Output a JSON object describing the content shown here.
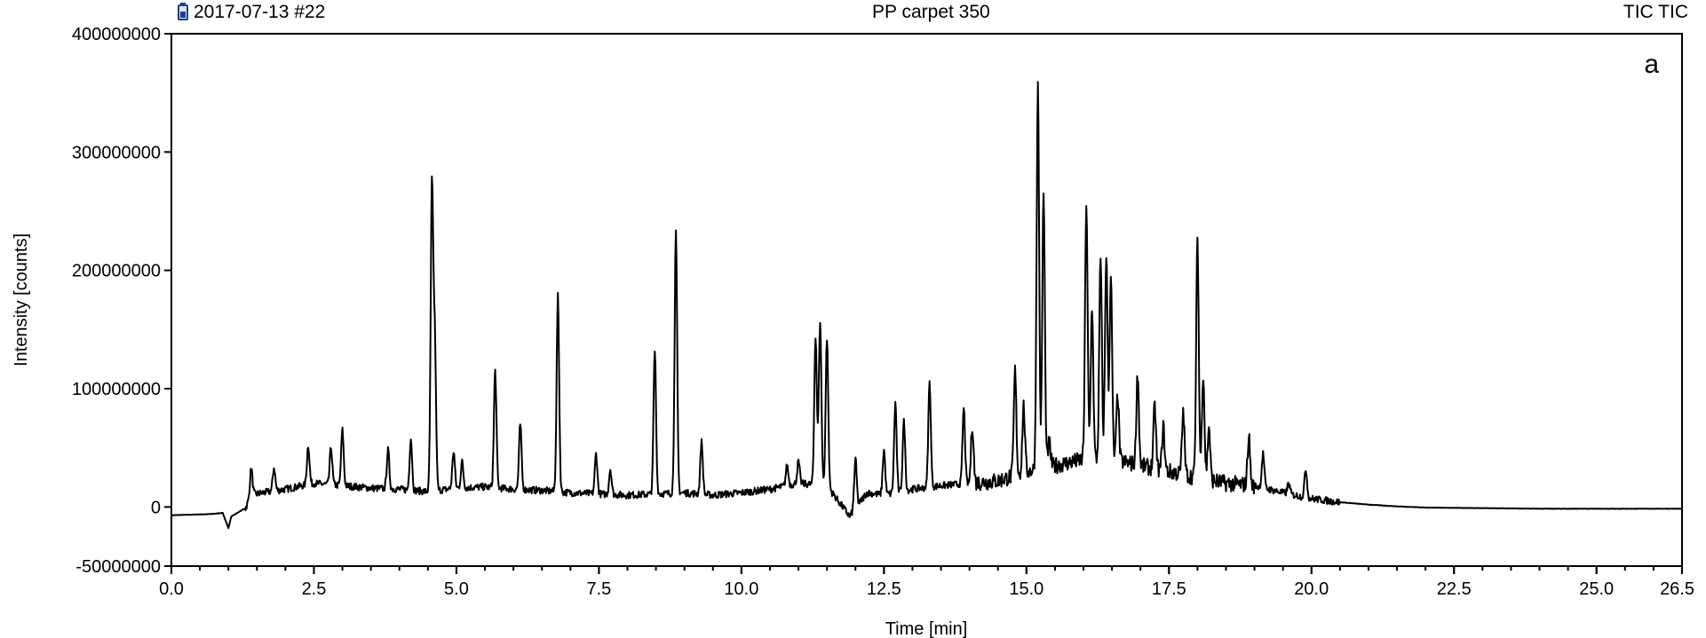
{
  "header": {
    "left": "2017-07-13 #22",
    "center": "PP carpet 350",
    "right": "TIC TIC"
  },
  "panel_label": "a",
  "chart_data": {
    "type": "line",
    "xlabel": "Time [min]",
    "ylabel": "Intensity [counts]",
    "xlim": [
      0,
      26.5
    ],
    "ylim": [
      -50000000,
      400000000
    ],
    "x_ticks": [
      "0.0",
      "2.5",
      "5.0",
      "7.5",
      "10.0",
      "12.5",
      "15.0",
      "17.5",
      "20.0",
      "22.5",
      "25.0",
      "26.5"
    ],
    "y_ticks": [
      "400000000",
      "300000000",
      "200000000",
      "100000000",
      "0",
      "-50000000"
    ],
    "grid": false,
    "line_color": "#000000",
    "baseline": [
      [
        0.0,
        -7000000
      ],
      [
        0.7,
        -6000000
      ],
      [
        0.9,
        -5000000
      ],
      [
        1.0,
        -18000000
      ],
      [
        1.05,
        -8000000
      ],
      [
        1.3,
        -1000000
      ],
      [
        1.4,
        10000000
      ],
      [
        1.6,
        12000000
      ],
      [
        2.0,
        15000000
      ],
      [
        2.5,
        20000000
      ],
      [
        3.0,
        18000000
      ],
      [
        3.5,
        16000000
      ],
      [
        4.0,
        15000000
      ],
      [
        4.5,
        13000000
      ],
      [
        5.0,
        16000000
      ],
      [
        5.5,
        17000000
      ],
      [
        6.0,
        15000000
      ],
      [
        6.5,
        14000000
      ],
      [
        7.0,
        12000000
      ],
      [
        7.5,
        11000000
      ],
      [
        8.0,
        10000000
      ],
      [
        8.5,
        11000000
      ],
      [
        9.0,
        12000000
      ],
      [
        9.5,
        10000000
      ],
      [
        10.0,
        12000000
      ],
      [
        10.5,
        15000000
      ],
      [
        11.0,
        20000000
      ],
      [
        11.5,
        18000000
      ],
      [
        11.9,
        -8000000
      ],
      [
        12.2,
        12000000
      ],
      [
        12.5,
        10000000
      ],
      [
        13.0,
        15000000
      ],
      [
        13.5,
        18000000
      ],
      [
        14.0,
        20000000
      ],
      [
        14.5,
        22000000
      ],
      [
        15.0,
        30000000
      ],
      [
        15.5,
        35000000
      ],
      [
        16.0,
        40000000
      ],
      [
        16.5,
        40000000
      ],
      [
        17.0,
        35000000
      ],
      [
        17.5,
        30000000
      ],
      [
        18.0,
        25000000
      ],
      [
        18.5,
        20000000
      ],
      [
        19.0,
        18000000
      ],
      [
        19.5,
        12000000
      ],
      [
        20.0,
        7000000
      ],
      [
        20.5,
        4000000
      ],
      [
        21.0,
        2000000
      ],
      [
        21.5,
        500000
      ],
      [
        22.0,
        -500000
      ],
      [
        23.0,
        -1000000
      ],
      [
        24.0,
        -1500000
      ],
      [
        25.0,
        -1500000
      ],
      [
        26.5,
        -1500000
      ]
    ],
    "peaks": [
      [
        1.4,
        33000000
      ],
      [
        1.8,
        33000000
      ],
      [
        2.4,
        52000000
      ],
      [
        2.8,
        50000000
      ],
      [
        3.0,
        65000000
      ],
      [
        3.8,
        48000000
      ],
      [
        4.2,
        58000000
      ],
      [
        4.57,
        268000000
      ],
      [
        4.62,
        140000000
      ],
      [
        4.95,
        47000000
      ],
      [
        5.1,
        38000000
      ],
      [
        5.68,
        115000000
      ],
      [
        6.12,
        70000000
      ],
      [
        6.78,
        178000000
      ],
      [
        7.45,
        45000000
      ],
      [
        7.7,
        32000000
      ],
      [
        8.48,
        132000000
      ],
      [
        8.85,
        231000000
      ],
      [
        9.3,
        55000000
      ],
      [
        10.8,
        35000000
      ],
      [
        11.0,
        38000000
      ],
      [
        11.3,
        145000000
      ],
      [
        11.38,
        157000000
      ],
      [
        11.5,
        143000000
      ],
      [
        12.0,
        40000000
      ],
      [
        12.5,
        48000000
      ],
      [
        12.7,
        88000000
      ],
      [
        12.85,
        72000000
      ],
      [
        13.3,
        105000000
      ],
      [
        13.9,
        83000000
      ],
      [
        14.05,
        70000000
      ],
      [
        14.8,
        115000000
      ],
      [
        14.95,
        85000000
      ],
      [
        15.2,
        355000000
      ],
      [
        15.3,
        265000000
      ],
      [
        15.4,
        55000000
      ],
      [
        16.05,
        257000000
      ],
      [
        16.15,
        170000000
      ],
      [
        16.3,
        210000000
      ],
      [
        16.4,
        215000000
      ],
      [
        16.48,
        195000000
      ],
      [
        16.6,
        95000000
      ],
      [
        16.95,
        113000000
      ],
      [
        17.25,
        85000000
      ],
      [
        17.4,
        68000000
      ],
      [
        17.75,
        80000000
      ],
      [
        18.0,
        228000000
      ],
      [
        18.1,
        113000000
      ],
      [
        18.2,
        68000000
      ],
      [
        18.9,
        60000000
      ],
      [
        19.15,
        45000000
      ],
      [
        19.6,
        20000000
      ],
      [
        19.9,
        32000000
      ]
    ]
  }
}
